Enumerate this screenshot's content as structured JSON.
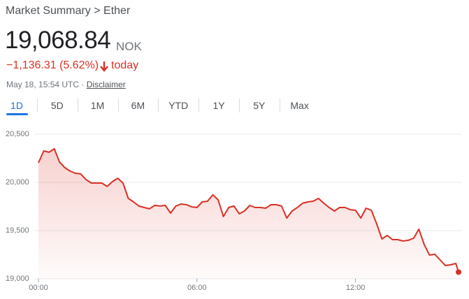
{
  "header": {
    "title": "Market Summary > Ether",
    "price": "19,068.84",
    "currency": "NOK",
    "change": "−1,136.31 (5.62%)",
    "period": "today",
    "timestamp": "May 18, 15:54 UTC",
    "separator": "·",
    "disclaimer": "Disclaimer"
  },
  "tabs": {
    "items": [
      "1D",
      "5D",
      "1M",
      "6M",
      "YTD",
      "1Y",
      "5Y",
      "Max"
    ],
    "selected": 0
  },
  "chart_data": {
    "type": "line",
    "color": "#d93025",
    "grid": true,
    "x": [
      0,
      0.2,
      0.4,
      0.6,
      0.8,
      1,
      1.2,
      1.4,
      1.6,
      1.8,
      2,
      2.2,
      2.4,
      2.6,
      2.8,
      3,
      3.2,
      3.4,
      3.6,
      3.8,
      4,
      4.2,
      4.4,
      4.6,
      4.8,
      5,
      5.2,
      5.4,
      5.6,
      5.8,
      6,
      6.2,
      6.4,
      6.6,
      6.8,
      7,
      7.2,
      7.4,
      7.6,
      7.8,
      8,
      8.2,
      8.4,
      8.6,
      8.8,
      9,
      9.2,
      9.4,
      9.6,
      9.8,
      10,
      10.2,
      10.4,
      10.6,
      10.8,
      11,
      11.2,
      11.4,
      11.6,
      11.8,
      12,
      12.2,
      12.4,
      12.6,
      12.8,
      13,
      13.2,
      13.4,
      13.6,
      13.8,
      14,
      14.2,
      14.4,
      14.6,
      14.8,
      15,
      15.2,
      15.4,
      15.6,
      15.8,
      15.9
    ],
    "values": [
      20203,
      20326,
      20312,
      20348,
      20210,
      20152,
      20116,
      20094,
      20087,
      20029,
      19993,
      19993,
      19993,
      19957,
      20007,
      20043,
      19993,
      19833,
      19797,
      19754,
      19739,
      19725,
      19761,
      19754,
      19761,
      19681,
      19754,
      19775,
      19768,
      19746,
      19739,
      19797,
      19804,
      19870,
      19819,
      19645,
      19739,
      19754,
      19674,
      19703,
      19761,
      19739,
      19739,
      19732,
      19768,
      19768,
      19754,
      19630,
      19703,
      19739,
      19783,
      19797,
      19804,
      19833,
      19783,
      19739,
      19703,
      19739,
      19739,
      19717,
      19710,
      19630,
      19732,
      19710,
      19572,
      19413,
      19449,
      19406,
      19406,
      19391,
      19399,
      19420,
      19514,
      19355,
      19246,
      19254,
      19196,
      19138,
      19145,
      19159,
      19068.84
    ],
    "xlim": [
      0,
      16
    ],
    "xticks": [
      {
        "value": 0,
        "label": "00:00"
      },
      {
        "value": 6,
        "label": "06:00"
      },
      {
        "value": 12,
        "label": "12:00"
      }
    ],
    "ylim": [
      19000,
      20500
    ],
    "yticks": [
      {
        "value": 19000,
        "label": "19,000"
      },
      {
        "value": 19500,
        "label": "19,500"
      },
      {
        "value": 20000,
        "label": "20,000"
      },
      {
        "value": 20500,
        "label": "20,500"
      }
    ]
  }
}
